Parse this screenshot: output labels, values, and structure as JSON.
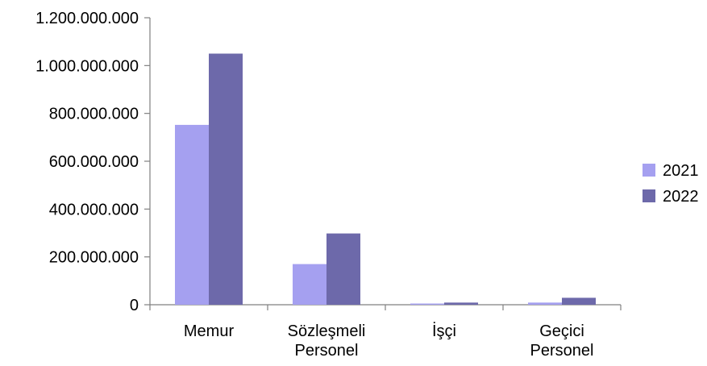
{
  "chart_data": {
    "type": "bar",
    "categories": [
      "Memur",
      "Sözleşmeli Personel",
      "İşçi",
      "Geçici Personel"
    ],
    "category_label_lines": [
      [
        "Memur"
      ],
      [
        "Sözleşmeli",
        "Personel"
      ],
      [
        "İşçi"
      ],
      [
        "Geçici",
        "Personel"
      ]
    ],
    "series": [
      {
        "name": "2021",
        "color": "#a5a0f0",
        "values": [
          752000000,
          170000000,
          5000000,
          9000000
        ]
      },
      {
        "name": "2022",
        "color": "#6d69aa",
        "values": [
          1050000000,
          298000000,
          9000000,
          29000000
        ]
      }
    ],
    "ylim": [
      0,
      1200000000
    ],
    "yticks": [
      0,
      200000000,
      400000000,
      600000000,
      800000000,
      1000000000,
      1200000000
    ],
    "ytick_labels": [
      "0",
      "200.000.000",
      "400.000.000",
      "600.000.000",
      "800.000.000",
      "1.000.000.000",
      "1.200.000.000"
    ],
    "title": "",
    "xlabel": "",
    "ylabel": "",
    "grid": false,
    "legend": "right",
    "axis_color": "#808080"
  }
}
